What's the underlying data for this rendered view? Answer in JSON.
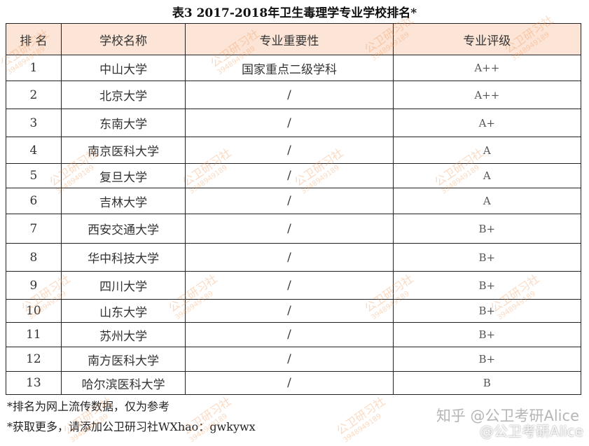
{
  "title": "表3 2017-2018年卫生毒理学专业学校排名*",
  "headers": [
    "排 名",
    "学校名称",
    "专业重要性",
    "专业评级"
  ],
  "rows": [
    [
      "1",
      "中山大学",
      "国家重点二级学科",
      "A++"
    ],
    [
      "2",
      "北京大学",
      "/",
      "A++"
    ],
    [
      "3",
      "东南大学",
      "/",
      "A+"
    ],
    [
      "4",
      "南京医科大学",
      "/",
      "A"
    ],
    [
      "5",
      "复旦大学",
      "/",
      "A"
    ],
    [
      "6",
      "吉林大学",
      "/",
      "A"
    ],
    [
      "7",
      "西安交通大学",
      "/",
      "B+"
    ],
    [
      "8",
      "华中科技大学",
      "/",
      "B+"
    ],
    [
      "9",
      "四川大学",
      "/",
      "B+"
    ],
    [
      "10",
      "山东大学",
      "/",
      "B+"
    ],
    [
      "11",
      "苏州大学",
      "/",
      "B+"
    ],
    [
      "12",
      "南方医科大学",
      "/",
      "B+"
    ],
    [
      "13",
      "哈尔滨医科大学",
      "/",
      "B"
    ]
  ],
  "notes": [
    "*排名为网上流传数据，仅为参考",
    "*获取更多，请添加公卫研习社WXhao：gwkywx"
  ],
  "watermark": {
    "text": "公卫研习社",
    "number": "3948949189"
  },
  "attribution": {
    "zhihu": "知乎 @公卫考研Alice",
    "weibo": "@公卫考研Alice"
  },
  "colors": {
    "header_bg": "#fce4d6",
    "watermark": "#f09650"
  }
}
